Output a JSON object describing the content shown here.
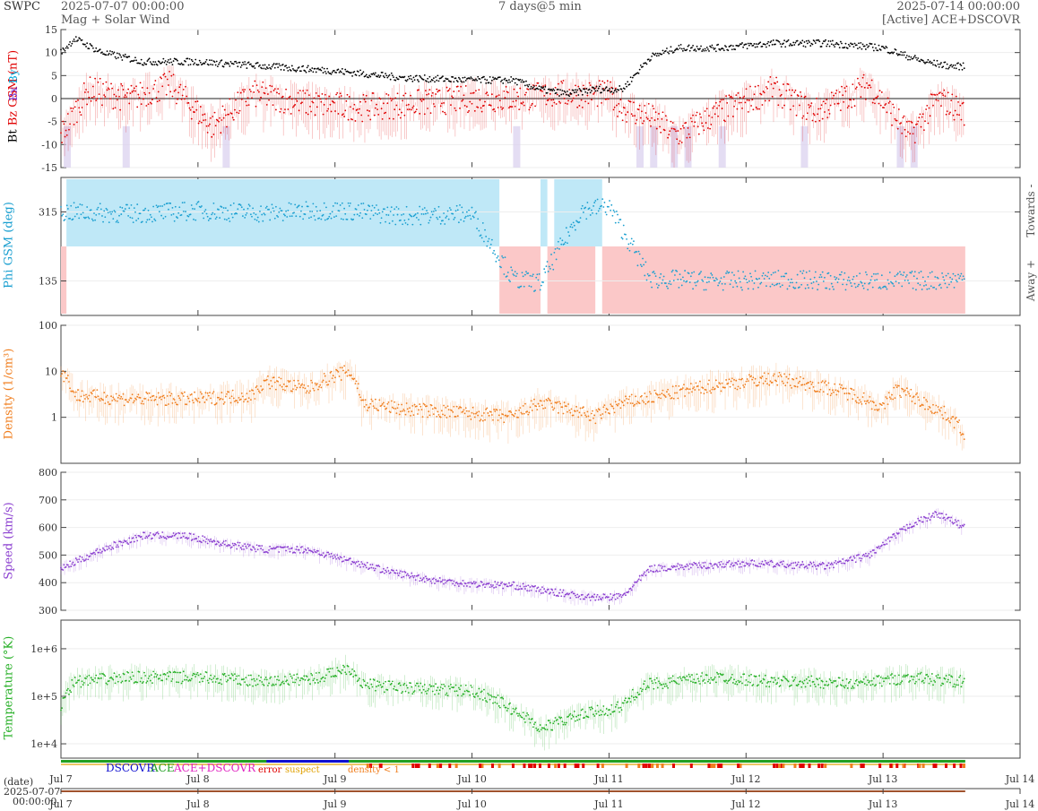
{
  "header": {
    "brand": "SWPC",
    "start_time": "2025-07-07 00:00:00",
    "subtitle": "Mag + Solar Wind",
    "resolution": "7 days@5 min",
    "end_time": "2025-07-14 00:00:00",
    "source": "[Active] ACE+DSCOVR"
  },
  "colors": {
    "bt": "#000000",
    "bz": "#e00000",
    "by": "#00aadd",
    "bx": "#7733cc",
    "phi": "#1a9fd0",
    "toward": "#bfe8f7",
    "away": "#fbc8c8",
    "density": "#f07f20",
    "speed": "#8b3fd0",
    "temperature": "#28b028",
    "dscovr": "#1010d0",
    "ace": "#22a022",
    "ace_dscovr": "#e020c0",
    "error": "#e00000",
    "suspect": "#e0a000",
    "density_lt1": "#f07f20"
  },
  "legend": {
    "dscovr": "DSCOVR",
    "ace": "ACE",
    "ace_dscovr": "ACE+DSCOVR",
    "error": "error",
    "suspect": "suspect",
    "density_lt1": "density < 1"
  },
  "bottom": {
    "date_label": "(date)",
    "start_date": "2025-07-07",
    "start_time": "00:00:00"
  },
  "chart_data": [
    {
      "type": "scatter",
      "id": "mag",
      "ylabel_parts": [
        "Bt",
        "Bz GSM (nT)",
        "Bx",
        "By"
      ],
      "ylim": [
        -15,
        15
      ],
      "yticks": [
        -15,
        -10,
        -5,
        0,
        5,
        10,
        15
      ],
      "xlabels": [
        "Jul 7",
        "Jul 8",
        "Jul 9",
        "Jul 10",
        "Jul 11",
        "Jul 12",
        "Jul 13",
        "Jul 14"
      ],
      "series": [
        {
          "name": "Bt",
          "x": [
            0,
            0.1,
            0.3,
            0.6,
            1,
            1.5,
            2,
            2.5,
            3,
            3.3,
            3.5,
            3.7,
            3.9,
            4.1,
            4.3,
            4.5,
            4.8,
            5.2,
            5.6,
            6,
            6.3,
            6.5,
            6.6
          ],
          "y": [
            10,
            13,
            10,
            8,
            8,
            7,
            6,
            4.5,
            4,
            4,
            2,
            1,
            2,
            2,
            9,
            11,
            11,
            12,
            12,
            11,
            8,
            7,
            7
          ]
        },
        {
          "name": "Bz",
          "x": [
            0,
            0.2,
            0.5,
            0.8,
            1.1,
            1.4,
            1.8,
            2.2,
            2.6,
            3,
            3.3,
            3.6,
            4,
            4.1,
            4.3,
            4.5,
            4.8,
            5.2,
            5.5,
            5.9,
            6.2,
            6.4,
            6.6
          ],
          "y": [
            -8,
            2,
            0,
            3,
            -6,
            1,
            -1,
            -2,
            -1,
            0,
            0,
            1,
            1,
            -2,
            -4,
            -8,
            -3,
            2,
            -3,
            3,
            -8,
            0,
            -3
          ]
        }
      ]
    },
    {
      "type": "scatter",
      "id": "phi",
      "ylabel": "Phi GSM (deg)",
      "right_top": "Towards -",
      "right_bottom": "Away +",
      "yticks": [
        135,
        315
      ],
      "x": [
        0,
        0.5,
        1,
        1.5,
        2,
        2.5,
        3,
        3.3,
        3.5,
        3.8,
        4,
        4.3,
        4.8,
        5.3,
        5.8,
        6.3,
        6.6
      ],
      "y": [
        315,
        310,
        318,
        312,
        320,
        305,
        310,
        140,
        130,
        320,
        330,
        140,
        135,
        138,
        134,
        136,
        140
      ]
    },
    {
      "type": "scatter",
      "id": "density",
      "ylabel": "Density (1/cm³)",
      "yscale": "log",
      "ylim": [
        0.1,
        100
      ],
      "yticks": [
        "1",
        "10",
        "100"
      ],
      "x": [
        0,
        0.1,
        0.5,
        1,
        1.4,
        1.5,
        1.8,
        2.1,
        2.2,
        2.5,
        3,
        3.3,
        3.5,
        3.9,
        4.1,
        4.4,
        4.8,
        5.2,
        5.5,
        5.8,
        6,
        6.1,
        6.3,
        6.6
      ],
      "y": [
        10,
        3,
        2.5,
        2.5,
        3,
        6,
        4,
        10,
        2,
        1.5,
        1.2,
        1,
        2,
        1,
        2,
        3,
        5,
        7,
        5,
        3,
        1.5,
        4,
        2,
        0.4
      ]
    },
    {
      "type": "scatter",
      "id": "speed",
      "ylabel": "Speed (km/s)",
      "ylim": [
        300,
        800
      ],
      "yticks": [
        300,
        400,
        500,
        600,
        700,
        800
      ],
      "x": [
        0,
        0.3,
        0.6,
        0.9,
        1.2,
        1.5,
        1.8,
        2.1,
        2.4,
        2.7,
        3,
        3.3,
        3.6,
        3.9,
        4.1,
        4.3,
        4.6,
        5,
        5.3,
        5.6,
        5.9,
        6.2,
        6.4,
        6.6
      ],
      "y": [
        450,
        520,
        570,
        570,
        540,
        520,
        520,
        480,
        440,
        410,
        395,
        390,
        365,
        345,
        350,
        450,
        460,
        470,
        465,
        460,
        500,
        610,
        650,
        600
      ]
    },
    {
      "type": "scatter",
      "id": "temperature",
      "ylabel": "Temperature (°K)",
      "yscale": "log",
      "ylim": [
        5000,
        4000000
      ],
      "yticks": [
        "1e+4",
        "1e+5",
        "1e+6"
      ],
      "x": [
        0,
        0.1,
        0.5,
        1,
        1.5,
        1.9,
        2.1,
        2.2,
        2.5,
        3,
        3.3,
        3.5,
        3.8,
        4.1,
        4.3,
        4.8,
        5.2,
        5.5,
        5.8,
        6.2,
        6.6
      ],
      "y": [
        60000,
        200000,
        250000,
        250000,
        200000,
        250000,
        400000,
        180000,
        150000,
        130000,
        50000,
        20000,
        40000,
        60000,
        180000,
        250000,
        200000,
        200000,
        180000,
        250000,
        200000
      ]
    }
  ]
}
